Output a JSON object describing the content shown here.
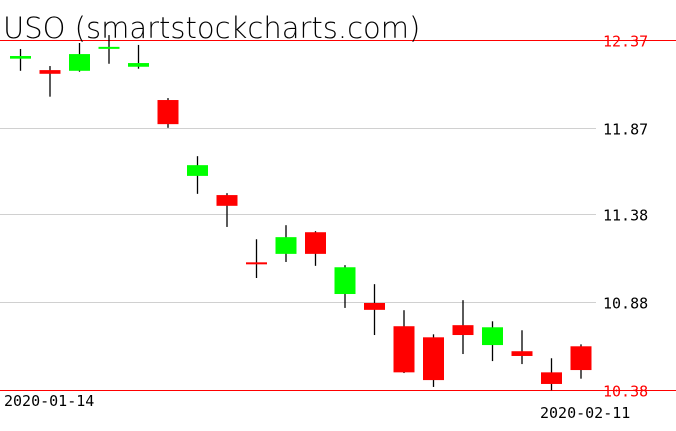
{
  "chart_data": {
    "type": "candlestick",
    "title": "USO (smartstockcharts.com)",
    "x_labels": {
      "first": "2020-01-14",
      "last": "2020-02-11"
    },
    "ylim": [
      10.38,
      12.37
    ],
    "y_ticks": [
      {
        "value": 12.37,
        "label": "12.37",
        "highlight": true
      },
      {
        "value": 11.87,
        "label": "11.87",
        "highlight": false
      },
      {
        "value": 11.38,
        "label": "11.38",
        "highlight": false
      },
      {
        "value": 10.88,
        "label": "10.88",
        "highlight": false
      },
      {
        "value": 10.38,
        "label": "10.38",
        "highlight": true
      }
    ],
    "grid": true,
    "colors": {
      "up": "#00ff00",
      "down": "#ff0000",
      "wick": "#000000",
      "grid": "#d0d0d0",
      "range_line": "#ff0000"
    },
    "candles": [
      {
        "open": 12.264,
        "high": 12.319,
        "low": 12.195,
        "close": 12.279
      },
      {
        "open": 12.199,
        "high": 12.222,
        "low": 12.048,
        "close": 12.178
      },
      {
        "open": 12.195,
        "high": 12.353,
        "low": 12.19,
        "close": 12.29
      },
      {
        "open": 12.33,
        "high": 12.398,
        "low": 12.235,
        "close": 12.331
      },
      {
        "open": 12.218,
        "high": 12.342,
        "low": 12.207,
        "close": 12.239
      },
      {
        "open": 12.029,
        "high": 12.04,
        "low": 11.871,
        "close": 11.892
      },
      {
        "open": 11.598,
        "high": 11.71,
        "low": 11.496,
        "close": 11.659
      },
      {
        "open": 11.489,
        "high": 11.5,
        "low": 11.308,
        "close": 11.428
      },
      {
        "open": 11.107,
        "high": 11.238,
        "low": 11.018,
        "close": 11.105
      },
      {
        "open": 11.155,
        "high": 11.318,
        "low": 11.109,
        "close": 11.25
      },
      {
        "open": 11.278,
        "high": 11.284,
        "low": 11.087,
        "close": 11.155
      },
      {
        "open": 10.927,
        "high": 11.091,
        "low": 10.848,
        "close": 11.079
      },
      {
        "open": 10.876,
        "high": 10.983,
        "low": 10.694,
        "close": 10.837
      },
      {
        "open": 10.744,
        "high": 10.835,
        "low": 10.478,
        "close": 10.482
      },
      {
        "open": 10.681,
        "high": 10.698,
        "low": 10.399,
        "close": 10.438
      },
      {
        "open": 10.75,
        "high": 10.892,
        "low": 10.586,
        "close": 10.694
      },
      {
        "open": 10.637,
        "high": 10.772,
        "low": 10.546,
        "close": 10.738
      },
      {
        "open": 10.602,
        "high": 10.721,
        "low": 10.529,
        "close": 10.575
      },
      {
        "open": 10.482,
        "high": 10.562,
        "low": 10.38,
        "close": 10.416
      },
      {
        "open": 10.63,
        "high": 10.641,
        "low": 10.446,
        "close": 10.495
      }
    ]
  }
}
